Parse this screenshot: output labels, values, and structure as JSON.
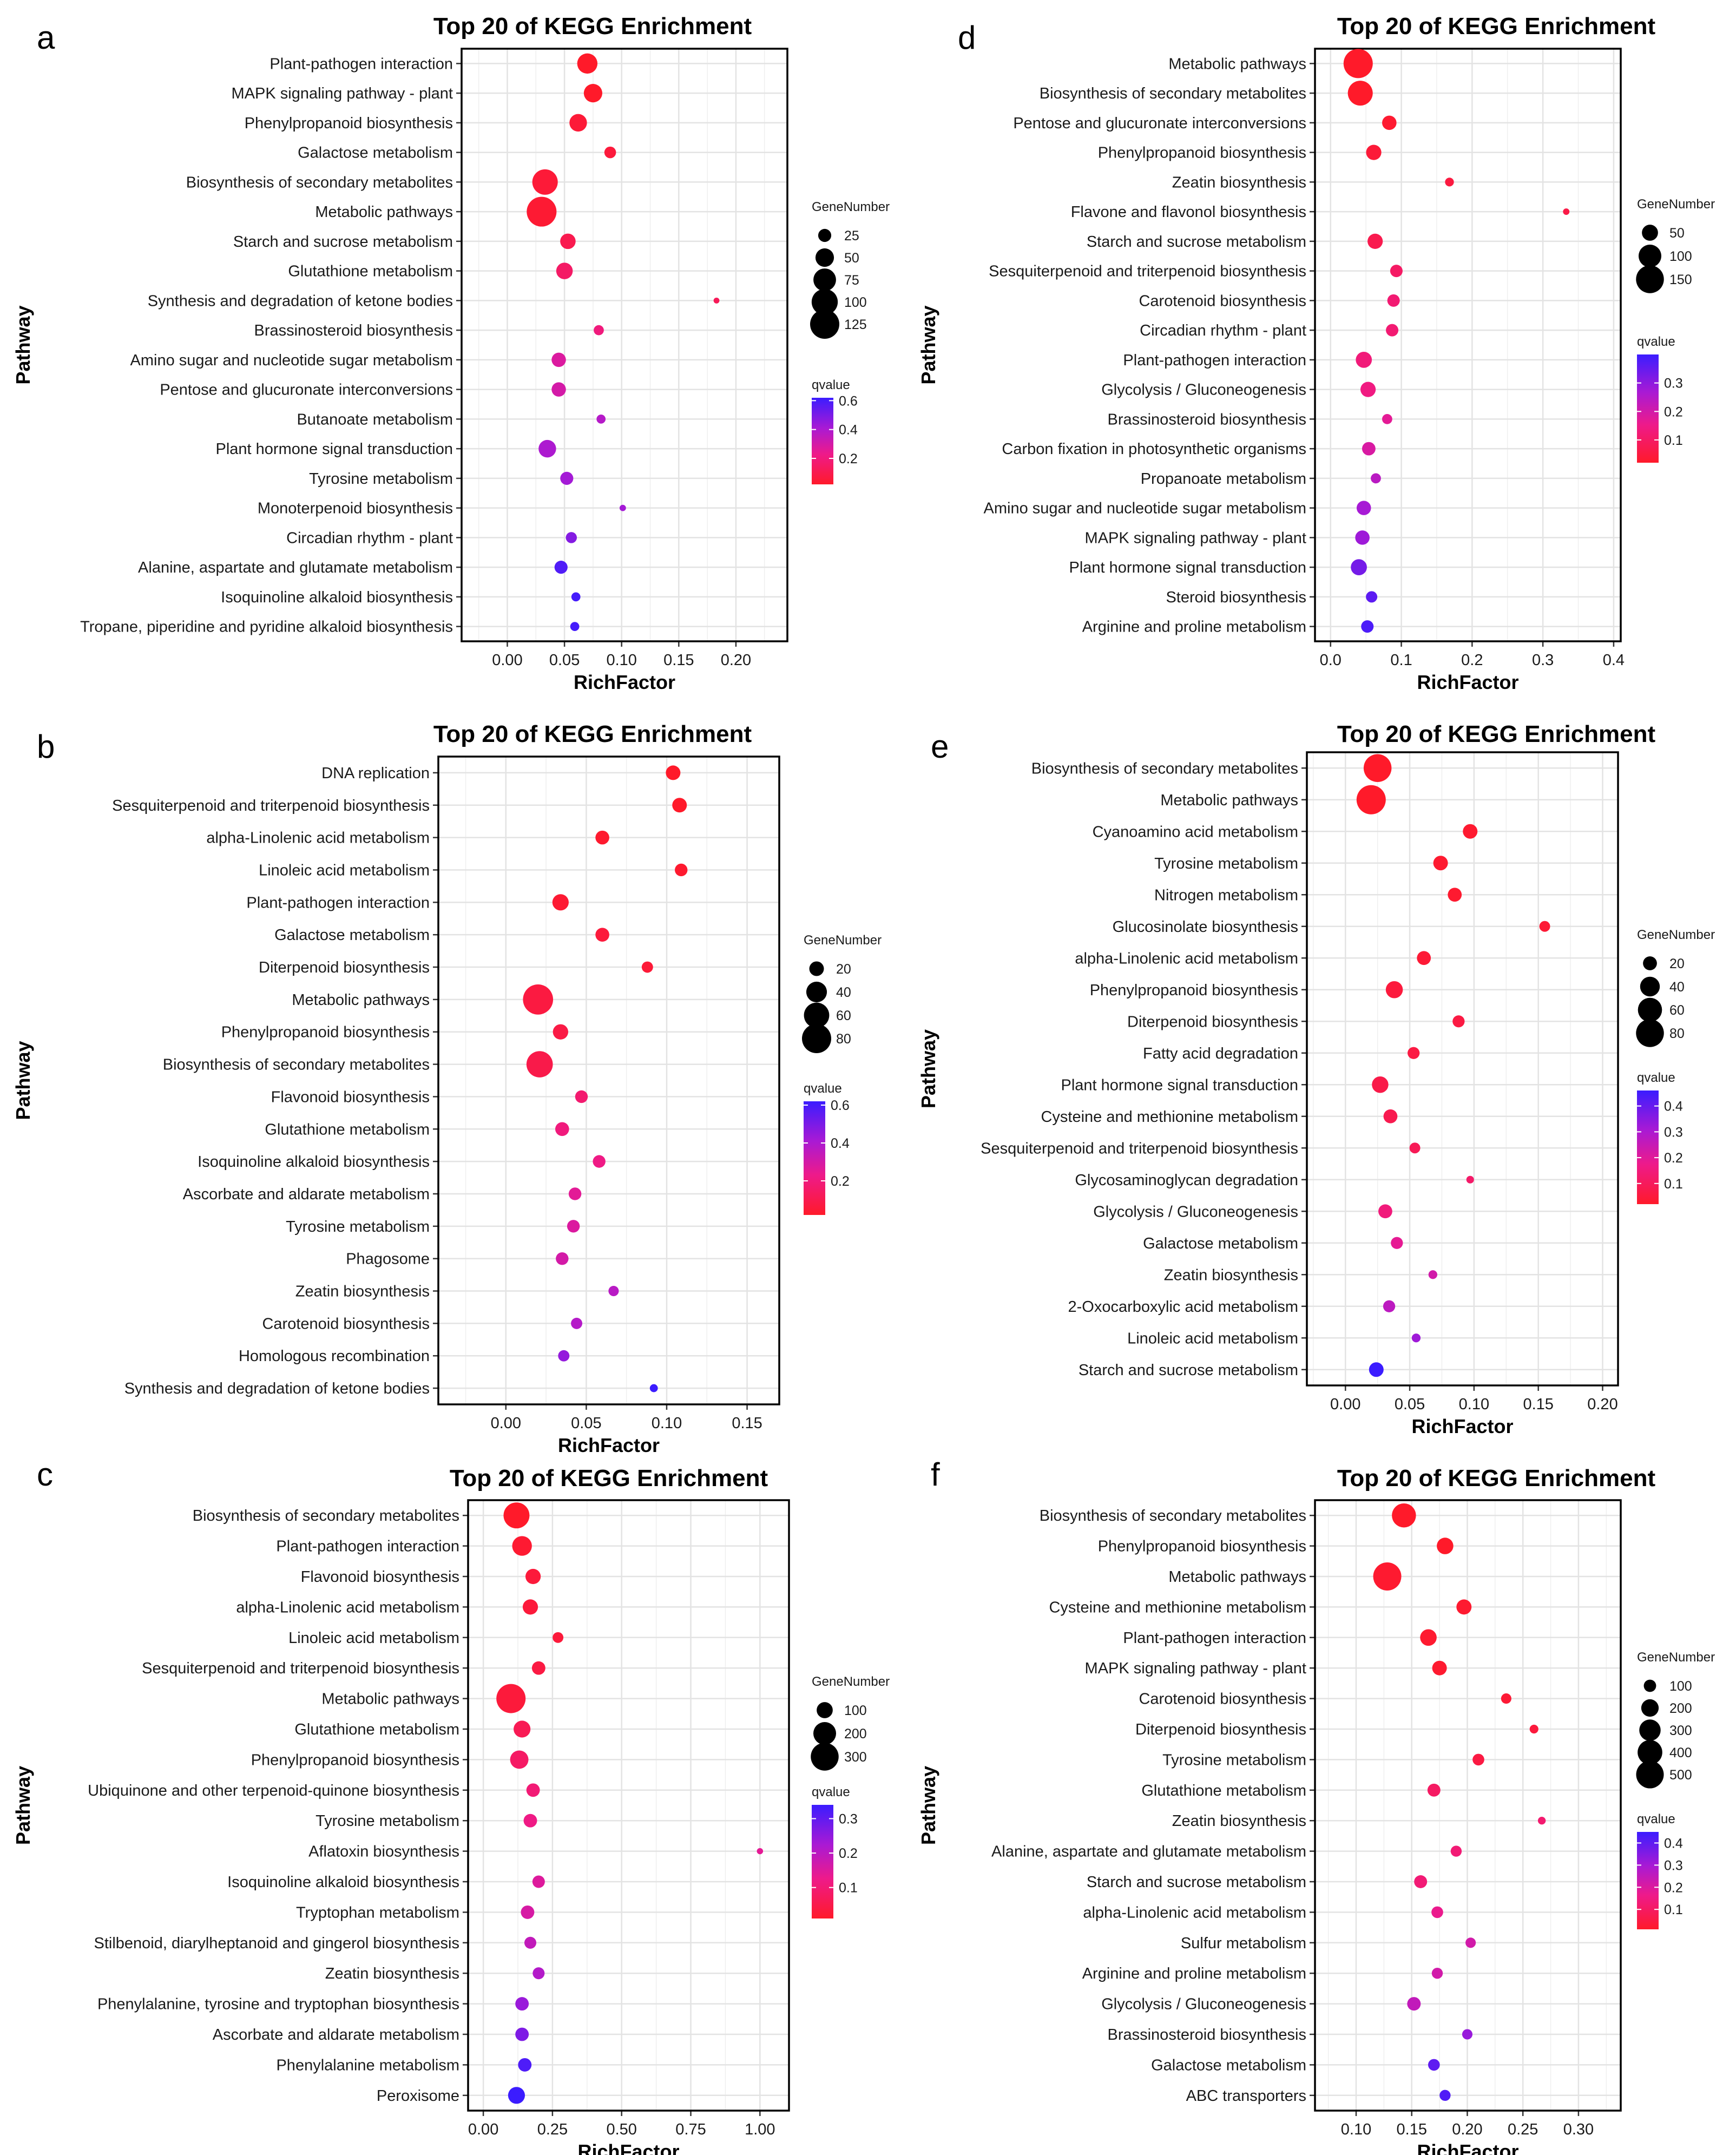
{
  "chart_data": [
    {
      "panel_label": "a",
      "type": "scatter",
      "title": "Top 20 of KEGG Enrichment",
      "xlabel": "RichFactor",
      "ylabel": "Pathway",
      "xlim": [
        -0.04,
        0.245
      ],
      "xticks": [
        0,
        0.05,
        0.1,
        0.15,
        0.2
      ],
      "xtick_labels": [
        "0.00",
        "0.05",
        "0.10",
        "0.15",
        "0.20"
      ],
      "size_legend_title": "GeneNumber",
      "size_legend": [
        25,
        50,
        75,
        100,
        125
      ],
      "size_max": 125,
      "color_legend_title": "qvalue",
      "qmin": 0.02,
      "qmax": 0.62,
      "color_ticks": [
        0.6,
        0.4,
        0.2
      ],
      "color_tick_labels": [
        "0.6",
        "0.4",
        "0.2"
      ],
      "pathways": [
        "Plant-pathogen interaction",
        "MAPK signaling pathway - plant",
        "Phenylpropanoid biosynthesis",
        "Galactose metabolism",
        "Biosynthesis of secondary metabolites",
        "Metabolic pathways",
        "Starch and sucrose metabolism",
        "Glutathione metabolism",
        "Synthesis and degradation of ketone bodies",
        "Brassinosteroid biosynthesis",
        "Amino sugar and nucleotide sugar metabolism",
        "Pentose and glucuronate interconversions",
        "Butanoate metabolism",
        "Plant hormone signal transduction",
        "Tyrosine metabolism",
        "Monoterpenoid biosynthesis",
        "Circadian rhythm - plant",
        "Alanine, aspartate and glutamate metabolism",
        "Isoquinoline alkaloid biosynthesis",
        "Tropane, piperidine and pyridine alkaloid biosynthesis"
      ],
      "rich_factor": [
        0.07,
        0.075,
        0.062,
        0.09,
        0.033,
        0.03,
        0.053,
        0.05,
        0.183,
        0.08,
        0.045,
        0.045,
        0.082,
        0.035,
        0.052,
        0.101,
        0.056,
        0.047,
        0.06,
        0.059
      ],
      "gene_number": [
        60,
        50,
        45,
        20,
        95,
        130,
        35,
        40,
        5,
        15,
        30,
        30,
        12,
        45,
        25,
        6,
        18,
        25,
        12,
        12
      ],
      "qvalue": [
        0.02,
        0.02,
        0.05,
        0.06,
        0.05,
        0.04,
        0.1,
        0.15,
        0.12,
        0.2,
        0.28,
        0.3,
        0.38,
        0.4,
        0.42,
        0.42,
        0.48,
        0.58,
        0.6,
        0.6
      ]
    },
    {
      "panel_label": "b",
      "type": "scatter",
      "title": "Top 20 of KEGG Enrichment",
      "xlabel": "RichFactor",
      "ylabel": "Pathway",
      "xlim": [
        -0.042,
        0.17
      ],
      "xticks": [
        0,
        0.05,
        0.1,
        0.15
      ],
      "xtick_labels": [
        "0.00",
        "0.05",
        "0.10",
        "0.15"
      ],
      "size_legend_title": "GeneNumber",
      "size_legend": [
        20,
        40,
        60,
        80
      ],
      "size_max": 80,
      "color_legend_title": "qvalue",
      "qmin": 0.02,
      "qmax": 0.62,
      "color_ticks": [
        0.6,
        0.4,
        0.2
      ],
      "color_tick_labels": [
        "0.6",
        "0.4",
        "0.2"
      ],
      "pathways": [
        "DNA replication",
        "Sesquiterpenoid and triterpenoid biosynthesis",
        "alpha-Linolenic acid metabolism",
        "Linoleic acid metabolism",
        "Plant-pathogen interaction",
        "Galactose metabolism",
        "Diterpenoid biosynthesis",
        "Metabolic pathways",
        "Phenylpropanoid biosynthesis",
        "Biosynthesis of secondary metabolites",
        "Flavonoid biosynthesis",
        "Glutathione metabolism",
        "Isoquinoline alkaloid biosynthesis",
        "Ascorbate and aldarate metabolism",
        "Tyrosine metabolism",
        "Phagosome",
        "Zeatin biosynthesis",
        "Carotenoid biosynthesis",
        "Homologous recombination",
        "Synthesis and degradation of ketone bodies"
      ],
      "rich_factor": [
        0.104,
        0.108,
        0.06,
        0.109,
        0.034,
        0.06,
        0.088,
        0.02,
        0.034,
        0.021,
        0.047,
        0.035,
        0.058,
        0.043,
        0.042,
        0.035,
        0.067,
        0.044,
        0.036,
        0.092
      ],
      "gene_number": [
        20,
        20,
        18,
        15,
        25,
        18,
        12,
        85,
        22,
        65,
        15,
        18,
        15,
        15,
        15,
        15,
        10,
        12,
        12,
        6
      ],
      "qvalue": [
        0.02,
        0.02,
        0.03,
        0.03,
        0.04,
        0.06,
        0.05,
        0.07,
        0.08,
        0.09,
        0.17,
        0.2,
        0.22,
        0.26,
        0.28,
        0.3,
        0.37,
        0.38,
        0.45,
        0.62
      ]
    },
    {
      "panel_label": "c",
      "type": "scatter",
      "title": "Top 20 of KEGG Enrichment",
      "xlabel": "RichFactor",
      "ylabel": "Pathway",
      "xlim": [
        -0.055,
        1.105
      ],
      "xticks": [
        0,
        0.25,
        0.5,
        0.75,
        1.0
      ],
      "xtick_labels": [
        "0.00",
        "0.25",
        "0.50",
        "0.75",
        "1.00"
      ],
      "size_legend_title": "GeneNumber",
      "size_legend": [
        100,
        200,
        300
      ],
      "size_max": 330,
      "color_legend_title": "qvalue",
      "qmin": 0.01,
      "qmax": 0.34,
      "color_ticks": [
        0.3,
        0.2,
        0.1
      ],
      "color_tick_labels": [
        "0.3",
        "0.2",
        "0.1"
      ],
      "pathways": [
        "Biosynthesis of secondary metabolites",
        "Plant-pathogen interaction",
        "Flavonoid biosynthesis",
        "alpha-Linolenic acid metabolism",
        "Linoleic acid metabolism",
        "Sesquiterpenoid and triterpenoid biosynthesis",
        "Metabolic pathways",
        "Glutathione metabolism",
        "Phenylpropanoid biosynthesis",
        "Ubiquinone and other terpenoid-quinone biosynthesis",
        "Tyrosine metabolism",
        "Aflatoxin biosynthesis",
        "Isoquinoline alkaloid biosynthesis",
        "Tryptophan metabolism",
        "Stilbenoid, diarylheptanoid and gingerol biosynthesis",
        "Zeatin biosynthesis",
        "Phenylalanine, tyrosine and tryptophan biosynthesis",
        "Ascorbate and aldarate metabolism",
        "Phenylalanine metabolism",
        "Peroxisome"
      ],
      "rich_factor": [
        0.12,
        0.14,
        0.18,
        0.17,
        0.27,
        0.2,
        0.1,
        0.14,
        0.13,
        0.18,
        0.17,
        1.0,
        0.2,
        0.16,
        0.17,
        0.2,
        0.14,
        0.14,
        0.15,
        0.12
      ],
      "gene_number": [
        260,
        150,
        90,
        90,
        45,
        70,
        330,
        110,
        130,
        70,
        70,
        15,
        60,
        70,
        55,
        55,
        70,
        70,
        70,
        110
      ],
      "qvalue": [
        0.01,
        0.02,
        0.03,
        0.03,
        0.03,
        0.04,
        0.03,
        0.06,
        0.08,
        0.1,
        0.12,
        0.14,
        0.15,
        0.16,
        0.19,
        0.21,
        0.24,
        0.27,
        0.32,
        0.34
      ]
    },
    {
      "panel_label": "d",
      "type": "scatter",
      "title": "Top 20 of KEGG Enrichment",
      "xlabel": "RichFactor",
      "ylabel": "Pathway",
      "xlim": [
        -0.022,
        0.41
      ],
      "xticks": [
        0,
        0.1,
        0.2,
        0.3,
        0.4
      ],
      "xtick_labels": [
        "0.0",
        "0.1",
        "0.2",
        "0.3",
        "0.4"
      ],
      "size_legend_title": "GeneNumber",
      "size_legend": [
        50,
        100,
        150
      ],
      "size_max": 165,
      "color_legend_title": "qvalue",
      "qmin": 0.02,
      "qmax": 0.4,
      "color_ticks": [
        0.3,
        0.2,
        0.1
      ],
      "color_tick_labels": [
        "0.3",
        "0.2",
        "0.1"
      ],
      "pathways": [
        "Metabolic pathways",
        "Biosynthesis of secondary metabolites",
        "Pentose and glucuronate interconversions",
        "Phenylpropanoid biosynthesis",
        "Zeatin biosynthesis",
        "Flavone and flavonol biosynthesis",
        "Starch and sucrose metabolism",
        "Sesquiterpenoid and triterpenoid biosynthesis",
        "Carotenoid biosynthesis",
        "Circadian rhythm - plant",
        "Plant-pathogen interaction",
        "Glycolysis / Gluconeogenesis",
        "Brassinosteroid biosynthesis",
        "Carbon fixation in photosynthetic organisms",
        "Propanoate metabolism",
        "Amino sugar and nucleotide sugar metabolism",
        "MAPK signaling pathway - plant",
        "Plant hormone signal transduction",
        "Steroid biosynthesis",
        "Arginine and proline metabolism"
      ],
      "rich_factor": [
        0.039,
        0.042,
        0.083,
        0.061,
        0.168,
        0.333,
        0.063,
        0.093,
        0.089,
        0.087,
        0.047,
        0.053,
        0.08,
        0.054,
        0.064,
        0.047,
        0.045,
        0.04,
        0.058,
        0.052
      ],
      "gene_number": [
        165,
        120,
        40,
        45,
        15,
        8,
        45,
        30,
        30,
        30,
        50,
        45,
        20,
        35,
        20,
        40,
        40,
        50,
        25,
        30
      ],
      "qvalue": [
        0.02,
        0.02,
        0.03,
        0.04,
        0.05,
        0.06,
        0.07,
        0.1,
        0.12,
        0.12,
        0.13,
        0.14,
        0.17,
        0.19,
        0.24,
        0.27,
        0.28,
        0.33,
        0.36,
        0.38
      ]
    },
    {
      "panel_label": "e",
      "type": "scatter",
      "title": "Top 20 of KEGG Enrichment",
      "xlabel": "RichFactor",
      "ylabel": "Pathway",
      "xlim": [
        -0.03,
        0.212
      ],
      "xticks": [
        0,
        0.05,
        0.1,
        0.15,
        0.2
      ],
      "xtick_labels": [
        "0.00",
        "0.05",
        "0.10",
        "0.15",
        "0.20"
      ],
      "size_legend_title": "GeneNumber",
      "size_legend": [
        20,
        40,
        60,
        80
      ],
      "size_max": 88,
      "color_legend_title": "qvalue",
      "qmin": 0.02,
      "qmax": 0.46,
      "color_ticks": [
        0.4,
        0.3,
        0.2,
        0.1
      ],
      "color_tick_labels": [
        "0.4",
        "0.3",
        "0.2",
        "0.1"
      ],
      "pathways": [
        "Biosynthesis of secondary metabolites",
        "Metabolic pathways",
        "Cyanoamino acid metabolism",
        "Tyrosine metabolism",
        "Nitrogen metabolism",
        "Glucosinolate biosynthesis",
        "alpha-Linolenic acid metabolism",
        "Phenylpropanoid biosynthesis",
        "Diterpenoid biosynthesis",
        "Fatty acid degradation",
        "Plant hormone signal transduction",
        "Cysteine and methionine metabolism",
        "Sesquiterpenoid and triterpenoid biosynthesis",
        "Glycosaminoglycan degradation",
        "Glycolysis / Gluconeogenesis",
        "Galactose metabolism",
        "Zeatin biosynthesis",
        "2-Oxocarboxylic acid metabolism",
        "Linoleic acid metabolism",
        "Starch and sucrose metabolism"
      ],
      "rich_factor": [
        0.025,
        0.02,
        0.097,
        0.074,
        0.085,
        0.155,
        0.061,
        0.038,
        0.088,
        0.053,
        0.027,
        0.035,
        0.054,
        0.097,
        0.031,
        0.04,
        0.068,
        0.034,
        0.055,
        0.024
      ],
      "gene_number": [
        80,
        88,
        22,
        22,
        20,
        12,
        20,
        30,
        15,
        15,
        28,
        20,
        12,
        6,
        20,
        15,
        8,
        15,
        8,
        22
      ],
      "qvalue": [
        0.02,
        0.02,
        0.03,
        0.03,
        0.03,
        0.04,
        0.04,
        0.05,
        0.06,
        0.06,
        0.07,
        0.08,
        0.09,
        0.12,
        0.15,
        0.19,
        0.23,
        0.27,
        0.32,
        0.46
      ]
    },
    {
      "panel_label": "f",
      "type": "scatter",
      "title": "Top 20 of KEGG Enrichment",
      "xlabel": "RichFactor",
      "ylabel": "Pathway",
      "xlim": [
        0.063,
        0.338
      ],
      "xticks": [
        0.1,
        0.15,
        0.2,
        0.25,
        0.3
      ],
      "xtick_labels": [
        "0.10",
        "0.15",
        "0.20",
        "0.25",
        "0.30"
      ],
      "size_legend_title": "GeneNumber",
      "size_legend": [
        100,
        200,
        300,
        400,
        500
      ],
      "size_max": 560,
      "color_legend_title": "qvalue",
      "qmin": 0.01,
      "qmax": 0.45,
      "color_ticks": [
        0.4,
        0.3,
        0.2,
        0.1
      ],
      "color_tick_labels": [
        "0.4",
        "0.3",
        "0.2",
        "0.1"
      ],
      "pathways": [
        "Biosynthesis of secondary metabolites",
        "Phenylpropanoid biosynthesis",
        "Metabolic pathways",
        "Cysteine and methionine metabolism",
        "Plant-pathogen interaction",
        "MAPK signaling pathway - plant",
        "Carotenoid biosynthesis",
        "Diterpenoid biosynthesis",
        "Tyrosine metabolism",
        "Glutathione metabolism",
        "Zeatin biosynthesis",
        "Alanine, aspartate and glutamate metabolism",
        "Starch and sucrose metabolism",
        "alpha-Linolenic acid metabolism",
        "Sulfur metabolism",
        "Arginine and proline metabolism",
        "Glycolysis / Gluconeogenesis",
        "Brassinosteroid biosynthesis",
        "Galactose metabolism",
        "ABC transporters"
      ],
      "rich_factor": [
        0.143,
        0.18,
        0.128,
        0.197,
        0.165,
        0.175,
        0.235,
        0.26,
        0.21,
        0.17,
        0.267,
        0.19,
        0.158,
        0.173,
        0.203,
        0.173,
        0.152,
        0.2,
        0.17,
        0.18
      ],
      "gene_number": [
        380,
        180,
        520,
        150,
        180,
        140,
        70,
        50,
        90,
        110,
        40,
        80,
        110,
        90,
        70,
        80,
        120,
        70,
        90,
        80
      ],
      "qvalue": [
        0.01,
        0.01,
        0.02,
        0.02,
        0.02,
        0.02,
        0.03,
        0.04,
        0.05,
        0.1,
        0.12,
        0.13,
        0.13,
        0.17,
        0.22,
        0.22,
        0.25,
        0.32,
        0.4,
        0.42
      ]
    }
  ]
}
